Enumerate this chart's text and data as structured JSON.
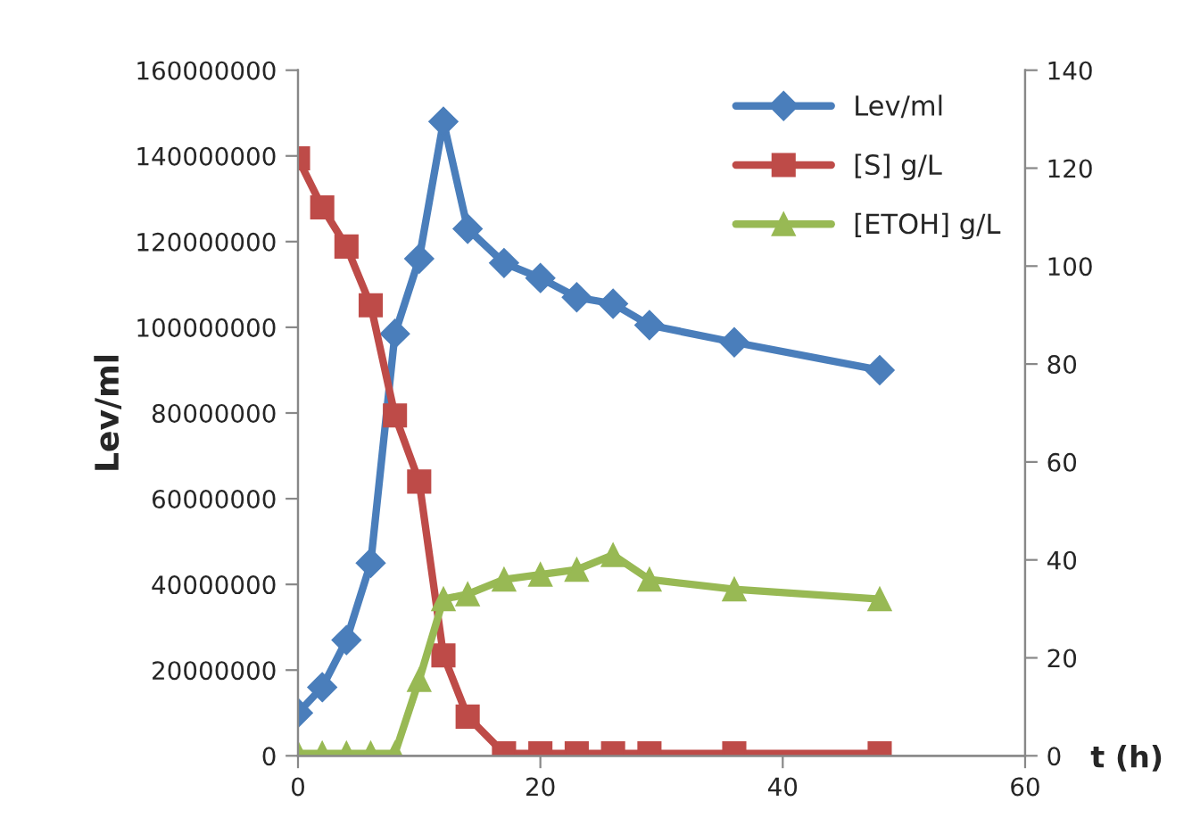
{
  "chart_data": {
    "type": "line",
    "xlabel": "t (h)",
    "ylabel": "Lev/ml",
    "x": [
      0,
      2,
      4,
      6,
      8,
      10,
      12,
      14,
      17,
      20,
      23,
      26,
      29,
      36,
      48
    ],
    "series": [
      {
        "name": "Lev/ml",
        "color": "#4a7ebb",
        "marker": "diamond",
        "values": [
          10000000,
          16000000,
          27000000,
          45000000,
          98500000,
          116000000,
          148000000,
          123000000,
          115000000,
          111500000,
          107000000,
          105500000,
          100500000,
          96500000,
          90000000
        ]
      },
      {
        "name": "[S] g/L",
        "color": "#be4b48",
        "marker": "square",
        "axis": "y2",
        "values": [
          122,
          112,
          104,
          92,
          69.5,
          56,
          20.5,
          8,
          0.5,
          0.5,
          0.5,
          0.5,
          0.5,
          0.5,
          0.5
        ]
      },
      {
        "name": "[ETOH] g/L",
        "color": "#98b954",
        "marker": "triangle",
        "axis": "y2",
        "values": [
          0.5,
          0.5,
          0.5,
          0.5,
          0.5,
          15.5,
          32,
          33,
          36,
          37,
          38,
          41,
          36,
          34,
          32
        ]
      }
    ],
    "xlim": [
      0,
      60
    ],
    "xticks": [
      0,
      20,
      40,
      60
    ],
    "ylim": [
      0,
      160000000
    ],
    "yticks": [
      0,
      20000000,
      40000000,
      60000000,
      80000000,
      100000000,
      120000000,
      140000000,
      160000000
    ],
    "y2lim": [
      0,
      140
    ],
    "y2ticks": [
      0,
      20,
      40,
      60,
      80,
      100,
      120,
      140
    ],
    "grid": false,
    "legend": "top right",
    "line_style": "solid"
  }
}
